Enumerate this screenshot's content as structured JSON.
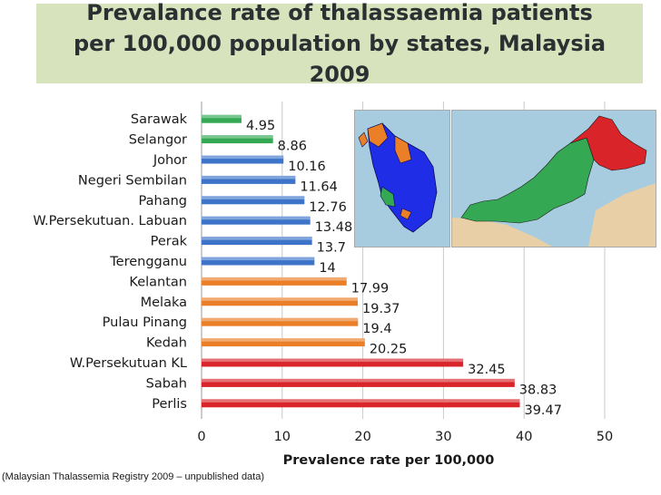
{
  "title": "Prevalance rate of thalassaemia patients per 100,000 population by states, Malaysia 2009",
  "source_note": "(Malaysian Thalassemia Registry 2009 – unpublished data)",
  "colors": {
    "green": "#34a853",
    "blue": "#3d74c9",
    "orange": "#ea7f27",
    "red": "#d9252a",
    "title_bg": "#d6e3bc"
  },
  "chart_data": {
    "type": "bar",
    "orientation": "horizontal",
    "categories": [
      "Sarawak",
      "Selangor",
      "Johor",
      "Negeri Sembilan",
      "Pahang",
      "W.Persekutuan. Labuan",
      "Perak",
      "Terengganu",
      "Kelantan",
      "Melaka",
      "Pulau Pinang",
      "Kedah",
      "W.Persekutuan KL",
      "Sabah",
      "Perlis"
    ],
    "values": [
      4.95,
      8.86,
      10.16,
      11.64,
      12.76,
      13.48,
      13.7,
      14,
      17.99,
      19.37,
      19.4,
      20.25,
      32.45,
      38.83,
      39.47
    ],
    "value_labels": [
      "4.95",
      "8.86",
      "10.16",
      "11.64",
      "12.76",
      "13.48",
      "13.7",
      "14",
      "17.99",
      "19.37",
      "19.4",
      "20.25",
      "32.45",
      "38.83",
      "39.47"
    ],
    "bar_colors": [
      "green",
      "green",
      "blue",
      "blue",
      "blue",
      "blue",
      "blue",
      "blue",
      "orange",
      "orange",
      "orange",
      "orange",
      "red",
      "red",
      "red"
    ],
    "xlabel": "Prevalence rate per 100,000",
    "xlim": [
      0,
      50
    ],
    "xticks": [
      "0",
      "10",
      "20",
      "30",
      "40",
      "50"
    ],
    "grid": true
  }
}
